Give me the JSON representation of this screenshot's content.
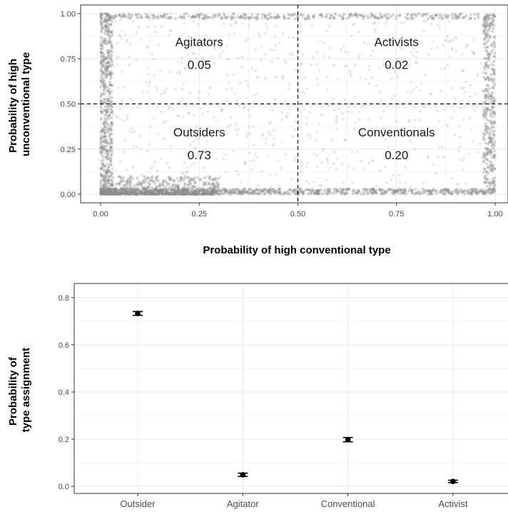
{
  "chart_data": [
    {
      "type": "scatter",
      "title": "",
      "xlabel": "Probability of high conventional type",
      "ylabel_lines": [
        "Probability of high",
        "unconventional type"
      ],
      "xlim": [
        0,
        1
      ],
      "ylim": [
        0,
        1
      ],
      "x_ticks": [
        "0.00",
        "0.25",
        "0.50",
        "0.75",
        "1.00"
      ],
      "y_ticks": [
        "0.00",
        "0.25",
        "0.50",
        "0.75",
        "1.00"
      ],
      "x_tick_values": [
        0,
        0.25,
        0.5,
        0.75,
        1
      ],
      "y_tick_values": [
        0,
        0.25,
        0.5,
        0.75,
        1
      ],
      "reference_lines": {
        "x": 0.5,
        "y": 0.5,
        "style": "dashed"
      },
      "grid": true,
      "point_color": "#8c8c8c",
      "quadrants": [
        {
          "name": "Agitators",
          "share": "0.05",
          "x": 0.25,
          "y": 0.75
        },
        {
          "name": "Activists",
          "share": "0.02",
          "x": 0.75,
          "y": 0.75
        },
        {
          "name": "Outsiders",
          "share": "0.73",
          "x": 0.25,
          "y": 0.25
        },
        {
          "name": "Conventionals",
          "share": "0.20",
          "x": 0.75,
          "y": 0.25
        }
      ],
      "point_clusters": [
        {
          "region": "bottom edge",
          "x_range": [
            0.0,
            1.0
          ],
          "y_range": [
            0.0,
            0.03
          ],
          "count": 900
        },
        {
          "region": "bottom-left dense",
          "x_range": [
            0.0,
            0.3
          ],
          "y_range": [
            0.0,
            0.1
          ],
          "count": 650
        },
        {
          "region": "left edge",
          "x_range": [
            0.0,
            0.03
          ],
          "y_range": [
            0.0,
            1.0
          ],
          "count": 500
        },
        {
          "region": "right edge",
          "x_range": [
            0.97,
            1.0
          ],
          "y_range": [
            0.0,
            1.0
          ],
          "count": 350
        },
        {
          "region": "top edge",
          "x_range": [
            0.0,
            1.0
          ],
          "y_range": [
            0.97,
            1.0
          ],
          "count": 350
        },
        {
          "region": "interior scatter",
          "x_range": [
            0.0,
            1.0
          ],
          "y_range": [
            0.0,
            1.0
          ],
          "count": 800
        }
      ]
    },
    {
      "type": "errorbar",
      "title": "",
      "xlabel": "",
      "ylabel_lines": [
        "Probability of",
        "type assignment"
      ],
      "categories": [
        "Outsider",
        "Agitator",
        "Conventional",
        "Activist"
      ],
      "values": [
        0.733,
        0.049,
        0.198,
        0.021
      ],
      "lower": [
        0.725,
        0.042,
        0.189,
        0.016
      ],
      "upper": [
        0.741,
        0.056,
        0.207,
        0.026
      ],
      "ylim": [
        -0.03,
        0.86
      ],
      "y_ticks": [
        "0.0",
        "0.2",
        "0.4",
        "0.6",
        "0.8"
      ],
      "y_tick_values": [
        0,
        0.2,
        0.4,
        0.6,
        0.8
      ],
      "grid": true,
      "point_color": "#000000"
    }
  ]
}
